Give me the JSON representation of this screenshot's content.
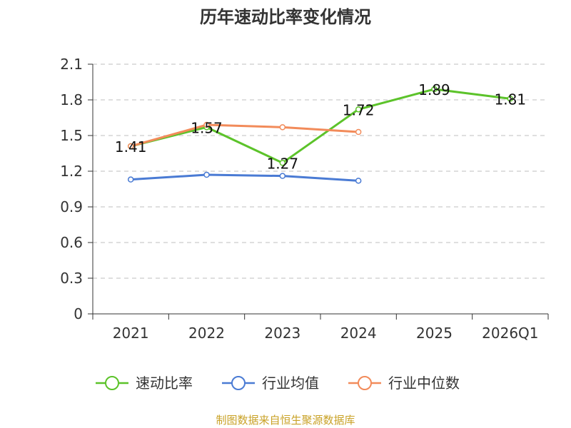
{
  "chart_data": {
    "type": "line",
    "title": "历年速动比率变化情况",
    "categories": [
      "2021",
      "2022",
      "2023",
      "2024",
      "2025",
      "2026Q1"
    ],
    "ylim": [
      0,
      2.1
    ],
    "yticks": [
      "0",
      "0.3",
      "0.6",
      "0.9",
      "1.2",
      "1.5",
      "1.8",
      "2.1"
    ],
    "xlabel": "",
    "ylabel": "",
    "grid": true,
    "legend_position": "bottom",
    "series": [
      {
        "name": "速动比率",
        "color": "#5cc32a",
        "values": [
          1.41,
          1.57,
          1.27,
          1.72,
          1.89,
          1.81
        ],
        "labels": [
          "1.41",
          "1.57",
          "1.27",
          "1.72",
          "1.89",
          "1.81"
        ]
      },
      {
        "name": "行业均值",
        "color": "#4a7bd4",
        "values": [
          1.13,
          1.17,
          1.16,
          1.12,
          null,
          null
        ]
      },
      {
        "name": "行业中位数",
        "color": "#f28b5a",
        "values": [
          1.41,
          1.59,
          1.57,
          1.53,
          null,
          null
        ]
      }
    ],
    "source": "制图数据来自恒生聚源数据库"
  }
}
